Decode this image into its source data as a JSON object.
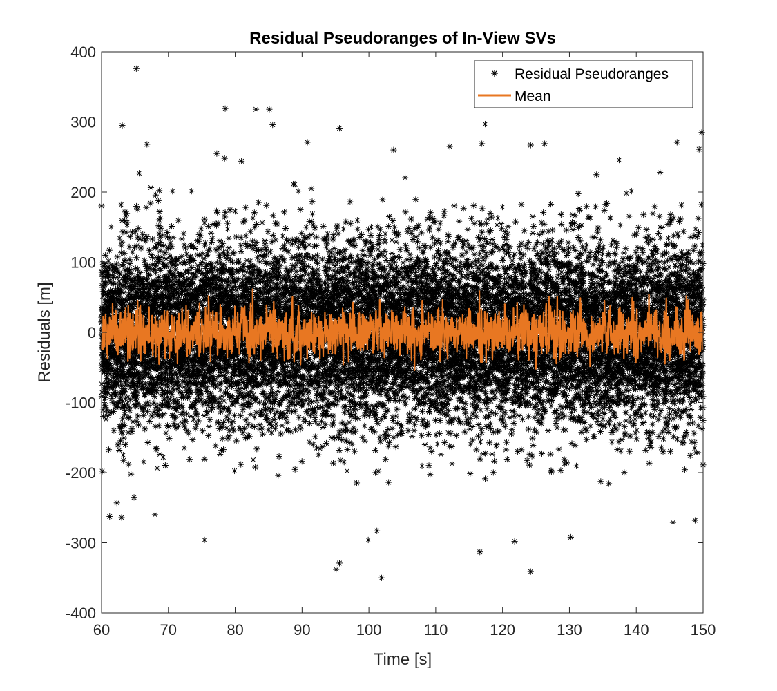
{
  "chart_data": {
    "type": "scatter",
    "title": "Residual Pseudoranges of In-View SVs",
    "xlabel": "Time [s]",
    "ylabel": "Residuals [m]",
    "xlim": [
      60,
      150
    ],
    "ylim": [
      -400,
      400
    ],
    "x_ticks": [
      60,
      70,
      80,
      90,
      100,
      110,
      120,
      130,
      140,
      150
    ],
    "y_ticks": [
      -400,
      -300,
      -200,
      -100,
      0,
      100,
      200,
      300,
      400
    ],
    "grid": false,
    "legend_position": "top-right",
    "series": [
      {
        "name": "Residual Pseudoranges",
        "kind": "scatter",
        "marker": "asterisk",
        "color": "#000000",
        "distribution": {
          "mean": 0,
          "std": 65
        },
        "notable_points": [
          {
            "x": 65.2,
            "y": 376
          },
          {
            "x": 63.1,
            "y": 295
          },
          {
            "x": 66.8,
            "y": 268
          },
          {
            "x": 78.5,
            "y": 319
          },
          {
            "x": 83.1,
            "y": 318
          },
          {
            "x": 85.1,
            "y": 318
          },
          {
            "x": 85.6,
            "y": 296
          },
          {
            "x": 90.8,
            "y": 271
          },
          {
            "x": 95.6,
            "y": 291
          },
          {
            "x": 103.7,
            "y": 260
          },
          {
            "x": 112.1,
            "y": 265
          },
          {
            "x": 116.9,
            "y": 269
          },
          {
            "x": 117.4,
            "y": 297
          },
          {
            "x": 124.2,
            "y": 267
          },
          {
            "x": 126.3,
            "y": 269
          },
          {
            "x": 146.1,
            "y": 271
          },
          {
            "x": 149.8,
            "y": 285
          },
          {
            "x": 149.4,
            "y": 261
          },
          {
            "x": 75.4,
            "y": -296
          },
          {
            "x": 95.1,
            "y": -338
          },
          {
            "x": 95.6,
            "y": -329
          },
          {
            "x": 99.9,
            "y": -296
          },
          {
            "x": 101.2,
            "y": -283
          },
          {
            "x": 101.9,
            "y": -350
          },
          {
            "x": 116.6,
            "y": -313
          },
          {
            "x": 121.8,
            "y": -298
          },
          {
            "x": 124.2,
            "y": -341
          },
          {
            "x": 130.2,
            "y": -292
          },
          {
            "x": 63.0,
            "y": -264
          },
          {
            "x": 68.0,
            "y": -260
          },
          {
            "x": 145.5,
            "y": -271
          },
          {
            "x": 148.8,
            "y": -268
          },
          {
            "x": 60.1,
            "y": -198
          }
        ]
      },
      {
        "name": "Mean",
        "kind": "line",
        "color": "#E87722",
        "distribution": {
          "mean": 0,
          "std": 18,
          "min": -83,
          "max": 66
        }
      }
    ]
  }
}
